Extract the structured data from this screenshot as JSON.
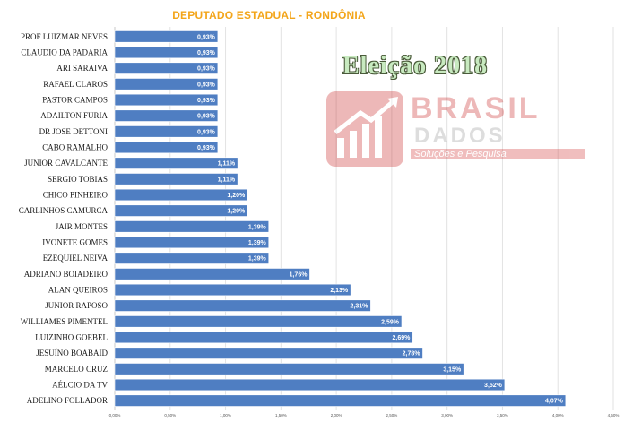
{
  "colors": {
    "bar": "#4f7ec2",
    "bar_edge": "#ffffff",
    "title": "#f3a51a",
    "grid": "#e2e2e2"
  },
  "overlay": {
    "eleicao": "Eleição 2018",
    "logo_brasil": "BRASIL",
    "logo_dados": "DADOS",
    "logo_sub": "Soluções e Pesquisa"
  },
  "chart_data": {
    "type": "bar",
    "orientation": "horizontal",
    "title": "DEPUTADO ESTADUAL - RONDÔNIA",
    "categories": [
      "PROF LUIZMAR NEVES",
      "CLAUDIO DA PADARIA",
      "ARI SARAIVA",
      "RAFAEL CLAROS",
      "PASTOR CAMPOS",
      "ADAILTON FURIA",
      "DR JOSE DETTONI",
      "CABO RAMALHO",
      "JUNIOR CAVALCANTE",
      "SERGIO TOBIAS",
      "CHICO PINHEIRO",
      "CARLINHOS CAMURCA",
      "JAIR MONTES",
      "IVONETE GOMES",
      "EZEQUIEL NEIVA",
      "ADRIANO BOIADEIRO",
      "ALAN QUEIROS",
      "JUNIOR RAPOSO",
      "WILLIAMES PIMENTEL",
      "LUIZINHO GOEBEL",
      "JESUÍNO BOABAID",
      "MARCELO CRUZ",
      "AÉLCIO DA TV",
      "ADELINO FOLLADOR"
    ],
    "values": [
      0.93,
      0.93,
      0.93,
      0.93,
      0.93,
      0.93,
      0.93,
      0.93,
      1.11,
      1.11,
      1.2,
      1.2,
      1.39,
      1.39,
      1.39,
      1.76,
      2.13,
      2.31,
      2.59,
      2.69,
      2.78,
      3.15,
      3.52,
      4.07
    ],
    "data_labels": [
      "0,93%",
      "0,93%",
      "0,93%",
      "0,93%",
      "0,93%",
      "0,93%",
      "0,93%",
      "0,93%",
      "1,11%",
      "1,11%",
      "1,20%",
      "1,20%",
      "1,39%",
      "1,39%",
      "1,39%",
      "1,76%",
      "2,13%",
      "2,31%",
      "2,59%",
      "2,69%",
      "2,78%",
      "3,15%",
      "3,52%",
      "4,07%"
    ],
    "xlim": [
      0,
      4.5
    ],
    "xticks": [
      0,
      0.5,
      1.0,
      1.5,
      2.0,
      2.5,
      3.0,
      3.5,
      4.0,
      4.5
    ],
    "xtick_labels": [
      "0,00%",
      "0,50%",
      "1,00%",
      "1,50%",
      "2,00%",
      "2,50%",
      "3,00%",
      "3,50%",
      "4,00%",
      "4,50%"
    ],
    "xlabel": "",
    "ylabel": "",
    "grid": true,
    "legend": "none"
  }
}
